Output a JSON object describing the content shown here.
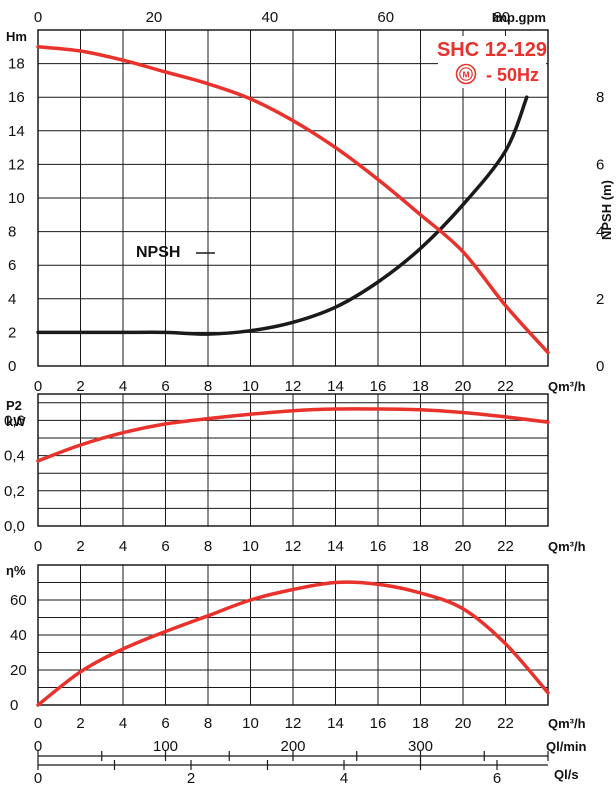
{
  "model": "SHC 12-129",
  "frequency": "- 50Hz",
  "motor_symbol": "M",
  "colors": {
    "curve": "#e8322b",
    "npsh": "#1a1a1a",
    "grid": "#1a1a1a",
    "title": "#e8322b"
  },
  "chart_data": [
    {
      "type": "line",
      "name": "head",
      "x_unit": "Qm³/h",
      "y_unit": "Hm",
      "y2_unit": "NPSH (m)",
      "top_unit": "Imp.gpm",
      "xlim": [
        0,
        24
      ],
      "ylim": [
        0,
        20
      ],
      "y2lim": [
        0,
        10
      ],
      "xticks": [
        "0",
        "2",
        "4",
        "6",
        "8",
        "10",
        "12",
        "14",
        "16",
        "18",
        "20",
        "22"
      ],
      "yticks": [
        "0",
        "2",
        "4",
        "6",
        "8",
        "10",
        "12",
        "14",
        "16",
        "18"
      ],
      "y2ticks": [
        "0",
        "2",
        "4",
        "6",
        "8"
      ],
      "top_ticks": [
        "0",
        "20",
        "40",
        "60",
        "80"
      ],
      "grid": true,
      "series": [
        {
          "values": [
            [
              0,
              19.0
            ],
            [
              2,
              18.75
            ],
            [
              4,
              18.2
            ],
            [
              6,
              17.5
            ],
            [
              8,
              16.8
            ],
            [
              10,
              15.9
            ],
            [
              12,
              14.6
            ],
            [
              14,
              13.0
            ],
            [
              16,
              11.1
            ],
            [
              18,
              9.0
            ],
            [
              20,
              6.8
            ],
            [
              22,
              3.6
            ],
            [
              24,
              0.8
            ]
          ]
        },
        {
          "name": "NPSH",
          "axis": "y2",
          "values": [
            [
              0,
              1.0
            ],
            [
              2,
              1.0
            ],
            [
              4,
              1.0
            ],
            [
              6,
              1.0
            ],
            [
              8,
              0.95
            ],
            [
              10,
              1.05
            ],
            [
              12,
              1.3
            ],
            [
              14,
              1.75
            ],
            [
              16,
              2.5
            ],
            [
              18,
              3.5
            ],
            [
              20,
              4.8
            ],
            [
              22,
              6.4
            ],
            [
              23,
              8.0
            ]
          ]
        }
      ]
    },
    {
      "type": "line",
      "name": "power",
      "x_unit": "Qm³/h",
      "y_unit_line1": "P2",
      "y_unit_line2": "kW",
      "xlim": [
        0,
        24
      ],
      "ylim": [
        0,
        0.75
      ],
      "xticks": [
        "0",
        "2",
        "4",
        "6",
        "8",
        "10",
        "12",
        "14",
        "16",
        "18",
        "20",
        "22"
      ],
      "yticks": [
        "0,0",
        "0,2",
        "0,4",
        "0,6"
      ],
      "grid": true,
      "series": [
        {
          "values": [
            [
              0,
              0.37
            ],
            [
              2,
              0.46
            ],
            [
              4,
              0.53
            ],
            [
              6,
              0.58
            ],
            [
              8,
              0.61
            ],
            [
              10,
              0.635
            ],
            [
              12,
              0.655
            ],
            [
              14,
              0.665
            ],
            [
              16,
              0.665
            ],
            [
              18,
              0.66
            ],
            [
              20,
              0.645
            ],
            [
              22,
              0.62
            ],
            [
              24,
              0.59
            ]
          ]
        }
      ]
    },
    {
      "type": "line",
      "name": "efficiency",
      "x_unit": "Qm³/h",
      "y_unit": "η%",
      "xlim": [
        0,
        24
      ],
      "ylim": [
        0,
        80
      ],
      "xticks": [
        "0",
        "2",
        "4",
        "6",
        "8",
        "10",
        "12",
        "14",
        "16",
        "18",
        "20",
        "22"
      ],
      "yticks": [
        "0",
        "20",
        "40",
        "60"
      ],
      "grid": true,
      "secondary_axes": [
        {
          "unit": "Ql/min",
          "ticks": [
            "0",
            "100",
            "200",
            "300"
          ]
        },
        {
          "unit": "Ql/s",
          "ticks": [
            "0",
            "2",
            "4",
            "6"
          ]
        }
      ],
      "series": [
        {
          "values": [
            [
              0,
              0
            ],
            [
              2,
              19
            ],
            [
              4,
              32
            ],
            [
              6,
              42
            ],
            [
              8,
              51
            ],
            [
              10,
              60
            ],
            [
              12,
              66
            ],
            [
              14,
              70
            ],
            [
              16,
              69
            ],
            [
              18,
              64
            ],
            [
              20,
              55
            ],
            [
              22,
              35
            ],
            [
              24,
              7
            ]
          ]
        }
      ]
    }
  ]
}
